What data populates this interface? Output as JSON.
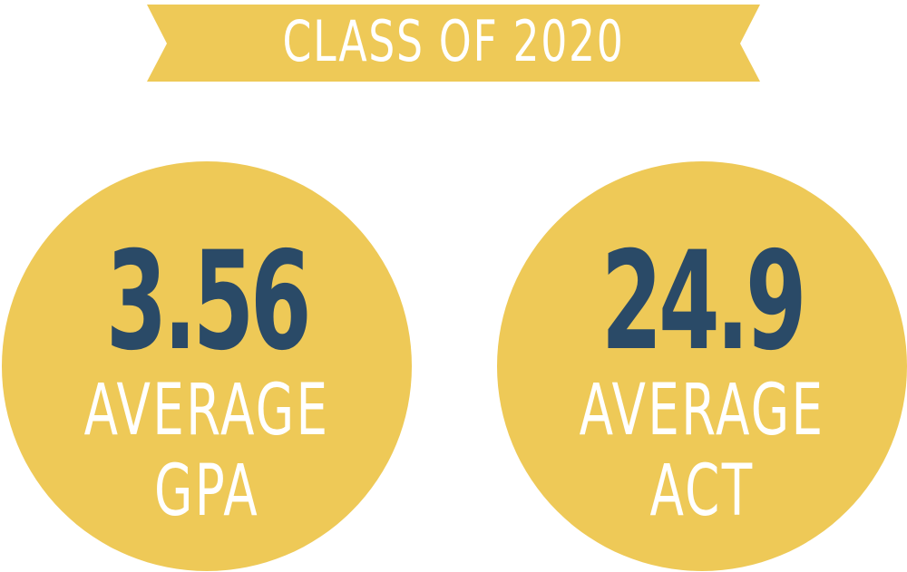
{
  "banner": {
    "title": "CLASS OF 2020"
  },
  "stats": [
    {
      "value": "3.56",
      "line1": "AVERAGE",
      "line2": "GPA"
    },
    {
      "value": "24.9",
      "line1": "AVERAGE",
      "line2": "ACT"
    }
  ],
  "colors": {
    "gold": "#eec957",
    "navy": "#2a4a67",
    "text_light": "#ffffff"
  }
}
